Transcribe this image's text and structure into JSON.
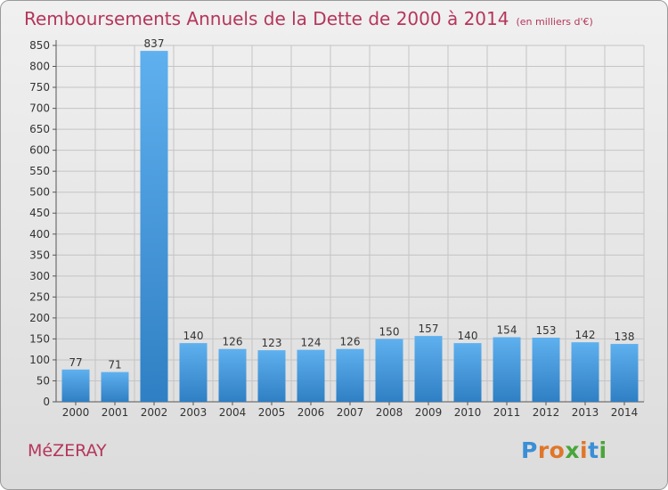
{
  "chart_data": {
    "type": "bar",
    "title": "Remboursements Annuels de la Dette de 2000 à 2014",
    "subtitle": "(en milliers d'€)",
    "categories": [
      "2000",
      "2001",
      "2002",
      "2003",
      "2004",
      "2005",
      "2006",
      "2007",
      "2008",
      "2009",
      "2010",
      "2011",
      "2012",
      "2013",
      "2014"
    ],
    "values": [
      77,
      71,
      837,
      140,
      126,
      123,
      124,
      126,
      150,
      157,
      140,
      154,
      153,
      142,
      138
    ],
    "ylim": [
      0,
      850
    ],
    "yticks": [
      0,
      50,
      100,
      150,
      200,
      250,
      300,
      350,
      400,
      450,
      500,
      550,
      600,
      650,
      700,
      750,
      800,
      850
    ],
    "grid": true,
    "bar_color": "#4a9de0"
  },
  "commune": "MéZERAY",
  "logo": {
    "text": "Proxiti",
    "letters": [
      {
        "ch": "P",
        "color": "#3a8fd6"
      },
      {
        "ch": "r",
        "color": "#e0762a"
      },
      {
        "ch": "o",
        "color": "#e0762a"
      },
      {
        "ch": "x",
        "color": "#4aa53a"
      },
      {
        "ch": "i",
        "color": "#e0762a"
      },
      {
        "ch": "t",
        "color": "#3a8fd6"
      },
      {
        "ch": "i",
        "color": "#4aa53a"
      }
    ]
  }
}
